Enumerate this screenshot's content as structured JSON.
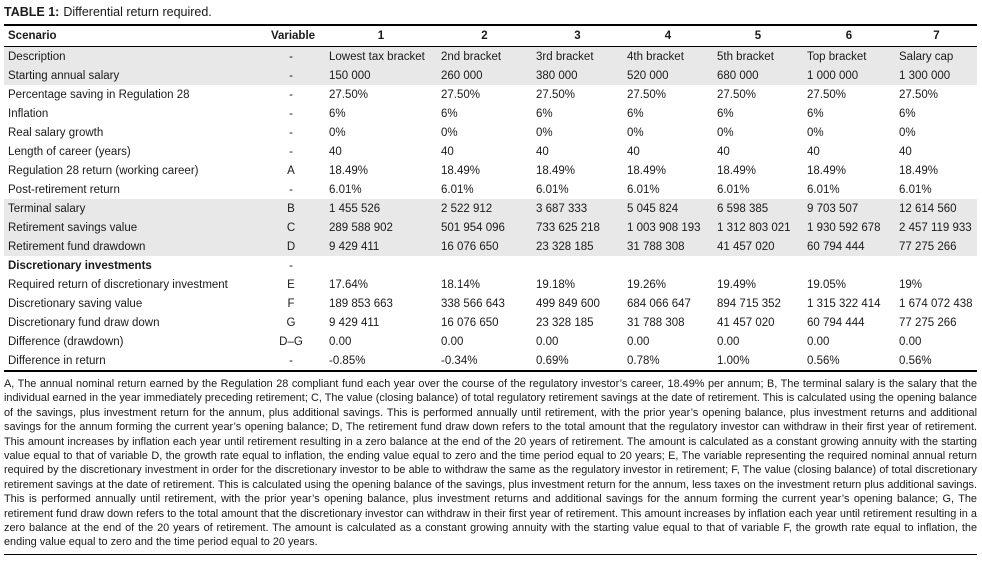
{
  "caption": {
    "label": "TABLE 1:",
    "text": "Differential return required."
  },
  "table": {
    "columns": [
      "Scenario",
      "Variable",
      "1",
      "2",
      "3",
      "4",
      "5",
      "6",
      "7"
    ],
    "rows": [
      {
        "scenario": "Description",
        "variable": "-",
        "values": [
          "Lowest tax bracket",
          "2nd bracket",
          "3rd bracket",
          "4th bracket",
          "5th bracket",
          "Top bracket",
          "Salary cap"
        ],
        "shaded": true,
        "bold": false
      },
      {
        "scenario": "Starting annual salary",
        "variable": "-",
        "values": [
          "150 000",
          "260 000",
          "380 000",
          "520 000",
          "680 000",
          "1 000 000",
          "1 300 000"
        ],
        "shaded": true,
        "bold": false
      },
      {
        "scenario": "Percentage saving in Regulation 28",
        "variable": "-",
        "values": [
          "27.50%",
          "27.50%",
          "27.50%",
          "27.50%",
          "27.50%",
          "27.50%",
          "27.50%"
        ],
        "shaded": false,
        "bold": false
      },
      {
        "scenario": "Inflation",
        "variable": "-",
        "values": [
          "6%",
          "6%",
          "6%",
          "6%",
          "6%",
          "6%",
          "6%"
        ],
        "shaded": false,
        "bold": false
      },
      {
        "scenario": "Real salary growth",
        "variable": "-",
        "values": [
          "0%",
          "0%",
          "0%",
          "0%",
          "0%",
          "0%",
          "0%"
        ],
        "shaded": false,
        "bold": false
      },
      {
        "scenario": "Length of career (years)",
        "variable": "-",
        "values": [
          "40",
          "40",
          "40",
          "40",
          "40",
          "40",
          "40"
        ],
        "shaded": false,
        "bold": false
      },
      {
        "scenario": "Regulation 28 return (working career)",
        "variable": "A",
        "values": [
          "18.49%",
          "18.49%",
          "18.49%",
          "18.49%",
          "18.49%",
          "18.49%",
          "18.49%"
        ],
        "shaded": false,
        "bold": false
      },
      {
        "scenario": "Post-retirement return",
        "variable": "-",
        "values": [
          "6.01%",
          "6.01%",
          "6.01%",
          "6.01%",
          "6.01%",
          "6.01%",
          "6.01%"
        ],
        "shaded": false,
        "bold": false
      },
      {
        "scenario": "Terminal salary",
        "variable": "B",
        "values": [
          "1 455 526",
          "2 522 912",
          "3 687 333",
          "5 045 824",
          "6 598 385",
          "9 703 507",
          "12 614 560"
        ],
        "shaded": true,
        "bold": false
      },
      {
        "scenario": "Retirement savings value",
        "variable": "C",
        "values": [
          "289 588 902",
          "501 954 096",
          "733 625 218",
          "1 003 908 193",
          "1 312 803 021",
          "1 930 592 678",
          "2 457 119 933"
        ],
        "shaded": true,
        "bold": false
      },
      {
        "scenario": "Retirement fund drawdown",
        "variable": "D",
        "values": [
          "9 429 411",
          "16 076 650",
          "23 328 185",
          "31 788 308",
          "41 457 020",
          "60 794 444",
          "77 275 266"
        ],
        "shaded": true,
        "bold": false
      },
      {
        "scenario": "Discretionary investments",
        "variable": "-",
        "values": [
          "",
          "",
          "",
          "",
          "",
          "",
          ""
        ],
        "shaded": false,
        "bold": true
      },
      {
        "scenario": "Required return of discretionary investment",
        "variable": "E",
        "values": [
          "17.64%",
          "18.14%",
          "19.18%",
          "19.26%",
          "19.49%",
          "19.05%",
          "19%"
        ],
        "shaded": false,
        "bold": false
      },
      {
        "scenario": "Discretionary saving value",
        "variable": "F",
        "values": [
          "189 853 663",
          "338 566 643",
          "499 849 600",
          "684 066 647",
          "894 715 352",
          "1 315 322 414",
          "1 674 072 438"
        ],
        "shaded": false,
        "bold": false
      },
      {
        "scenario": "Discretionary fund draw down",
        "variable": "G",
        "values": [
          "9 429 411",
          "16 076 650",
          "23 328 185",
          "31 788 308",
          "41 457 020",
          "60 794 444",
          "77 275 266"
        ],
        "shaded": false,
        "bold": false
      },
      {
        "scenario": "Difference (drawdown)",
        "variable": "D–G",
        "values": [
          "0.00",
          "0.00",
          "0.00",
          "0.00",
          "0.00",
          "0.00",
          "0.00"
        ],
        "shaded": false,
        "bold": false
      },
      {
        "scenario": "Difference in return",
        "variable": "-",
        "values": [
          "-0.85%",
          "-0.34%",
          "0.69%",
          "0.78%",
          "1.00%",
          "0.56%",
          "0.56%"
        ],
        "shaded": false,
        "bold": false
      }
    ]
  },
  "footnote": "A, The annual nominal return earned by the Regulation 28 compliant fund each year over the course of the regulatory investor’s career, 18.49% per annum; B, The terminal salary is the salary that the individual earned in the year immediately preceding retirement; C, The value (closing balance) of total regulatory retirement savings at the date of retirement. This is calculated using the opening balance of the savings, plus investment return for the annum, plus additional savings. This is performed annually until retirement, with the prior year’s opening balance, plus investment returns and additional savings for the annum forming the current year’s opening balance; D, The retirement fund draw down refers to the total amount that the regulatory investor can withdraw in their first year of retirement. This amount increases by inflation each year until retirement resulting in a zero balance at the end of the 20 years of retirement. The amount is calculated as a constant growing annuity with the starting value equal to that of variable D, the growth rate equal to inflation, the ending value equal to zero and the time period equal to 20 years; E, The variable representing the required nominal annual return required by the discretionary investment in order for the discretionary investor to be able to withdraw the same as the regulatory investor in retirement; F, The value (closing balance) of total discretionary retirement savings at the date of retirement. This is calculated using the opening balance of the savings, plus investment return for the annum, less taxes on the investment return plus additional savings. This is performed annually until retirement, with the prior year’s opening balance, plus investment returns and additional savings for the annum forming the current year’s opening balance; G, The retirement fund draw down refers to the total amount that the discretionary investor can withdraw in their first year of retirement. This amount increases by inflation each year until retirement resulting in a zero balance at the end of the 20 years of retirement. The amount is calculated as a constant growing annuity with the starting value equal to that of variable F, the growth rate equal to inflation, the ending value equal to zero and the time period equal to 20 years."
}
